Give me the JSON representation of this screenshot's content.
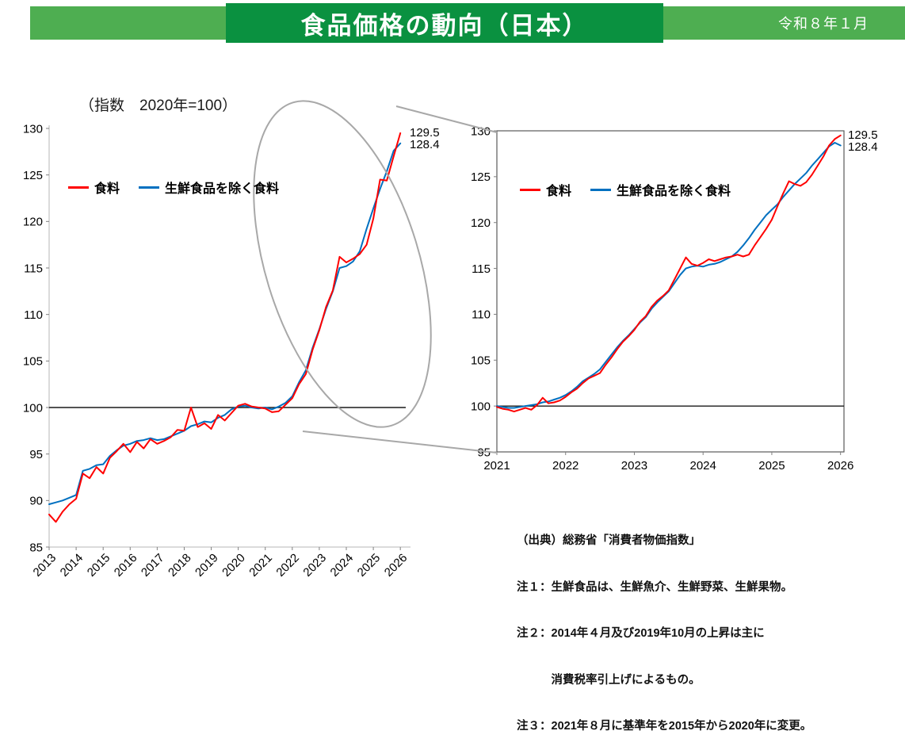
{
  "header": {
    "title": "食品価格の動向（日本）",
    "date_label": "令和８年１月"
  },
  "colors": {
    "banner_side": "#4eae51",
    "banner_center": "#0a9140",
    "series_red": "#ff0000",
    "series_blue": "#0070c0",
    "baseline_black": "#1a1a1a",
    "callout_gray": "#a8a8a8"
  },
  "left_chart": {
    "index_note": "（指数　2020年=100）"
  },
  "notes": {
    "source": "（出典）総務省「消費者物価指数」",
    "note1": "注１：生鮮食品は、生鮮魚介、生鮮野菜、生鮮果物。",
    "note2a": "注２：2014年４月及び2019年10月の上昇は主に",
    "note2b": "　　　消費税率引上げによるもの。",
    "note3": "注３：2021年８月に基準年を2015年から2020年に変更。"
  },
  "chart_data": [
    {
      "id": "overview",
      "type": "line",
      "title": "（指数　2020年=100）",
      "xlim": [
        2013,
        2026.2
      ],
      "ylim": [
        85,
        130
      ],
      "x_ticks": [
        2013,
        2014,
        2015,
        2016,
        2017,
        2018,
        2019,
        2020,
        2021,
        2022,
        2023,
        2024,
        2025,
        2026
      ],
      "y_ticks": [
        85,
        90,
        95,
        100,
        105,
        110,
        115,
        120,
        125,
        130
      ],
      "baseline": 100,
      "grid": false,
      "legend_position": "top-left-inside",
      "series": [
        {
          "name": "食料",
          "color": "#ff0000",
          "x_start": 2013,
          "x_step": 0.25,
          "end_label": "129.5",
          "values": [
            88.5,
            87.7,
            88.8,
            89.6,
            90.2,
            92.9,
            92.4,
            93.6,
            92.9,
            94.6,
            95.3,
            96.1,
            95.2,
            96.3,
            95.6,
            96.6,
            96.1,
            96.4,
            96.8,
            97.6,
            97.5,
            100.0,
            97.9,
            98.3,
            97.7,
            99.2,
            98.6,
            99.4,
            100.2,
            100.4,
            100.1,
            100.0,
            99.9,
            99.5,
            99.6,
            100.3,
            101.0,
            102.5,
            103.6,
            106.2,
            108.3,
            110.8,
            112.6,
            116.2,
            115.6,
            116.0,
            116.5,
            117.5,
            120.3,
            124.5,
            124.4,
            127.0,
            129.5
          ]
        },
        {
          "name": "生鮮食品を除く食料",
          "color": "#0070c0",
          "x_start": 2013,
          "x_step": 0.25,
          "end_label": "128.4",
          "values": [
            89.6,
            89.8,
            90.0,
            90.3,
            90.6,
            93.2,
            93.4,
            93.8,
            93.9,
            94.8,
            95.4,
            95.9,
            96.1,
            96.4,
            96.5,
            96.7,
            96.5,
            96.6,
            96.9,
            97.2,
            97.5,
            98.0,
            98.2,
            98.5,
            98.4,
            98.9,
            99.2,
            99.8,
            100.1,
            100.2,
            100.0,
            99.9,
            100.0,
            99.8,
            100.1,
            100.5,
            101.2,
            102.7,
            104.0,
            106.4,
            108.4,
            110.6,
            112.5,
            115.0,
            115.2,
            115.7,
            116.8,
            119.2,
            121.4,
            123.5,
            125.4,
            127.6,
            128.4
          ]
        }
      ]
    },
    {
      "id": "zoom",
      "type": "line",
      "title": "",
      "xlim": [
        2021,
        2026.05
      ],
      "ylim": [
        95,
        130
      ],
      "x_ticks": [
        2021,
        2022,
        2023,
        2024,
        2025,
        2026
      ],
      "y_ticks": [
        95,
        100,
        105,
        110,
        115,
        120,
        125,
        130
      ],
      "baseline": 100,
      "grid": false,
      "legend_position": "top-left-inside",
      "series": [
        {
          "name": "食料",
          "color": "#ff0000",
          "x_start": 2021,
          "x_step": 0.0833333,
          "end_label": "129.5",
          "values": [
            99.9,
            99.7,
            99.6,
            99.4,
            99.6,
            99.8,
            99.6,
            100.1,
            100.9,
            100.3,
            100.4,
            100.6,
            101.0,
            101.5,
            101.9,
            102.5,
            103.0,
            103.3,
            103.6,
            104.5,
            105.3,
            106.2,
            107.0,
            107.6,
            108.3,
            109.2,
            109.8,
            110.8,
            111.5,
            112.0,
            112.6,
            113.8,
            115.0,
            116.2,
            115.5,
            115.3,
            115.6,
            116.0,
            115.8,
            116.0,
            116.2,
            116.3,
            116.5,
            116.3,
            116.5,
            117.5,
            118.4,
            119.3,
            120.3,
            121.8,
            123.2,
            124.5,
            124.2,
            124.0,
            124.4,
            125.2,
            126.2,
            127.2,
            128.4,
            129.1,
            129.5
          ]
        },
        {
          "name": "生鮮食品を除く食料",
          "color": "#0070c0",
          "x_start": 2021,
          "x_step": 0.0833333,
          "end_label": "128.4",
          "values": [
            100.0,
            99.9,
            99.8,
            99.8,
            99.9,
            100.0,
            100.1,
            100.2,
            100.4,
            100.5,
            100.7,
            100.9,
            101.2,
            101.6,
            102.1,
            102.7,
            103.1,
            103.5,
            104.0,
            104.8,
            105.6,
            106.4,
            107.1,
            107.7,
            108.4,
            109.1,
            109.7,
            110.6,
            111.3,
            111.9,
            112.5,
            113.4,
            114.3,
            115.0,
            115.2,
            115.3,
            115.2,
            115.4,
            115.5,
            115.7,
            116.0,
            116.3,
            116.8,
            117.5,
            118.3,
            119.2,
            120.0,
            120.8,
            121.4,
            122.0,
            122.8,
            123.5,
            124.2,
            124.8,
            125.4,
            126.2,
            126.9,
            127.6,
            128.3,
            128.7,
            128.4
          ]
        }
      ]
    }
  ]
}
